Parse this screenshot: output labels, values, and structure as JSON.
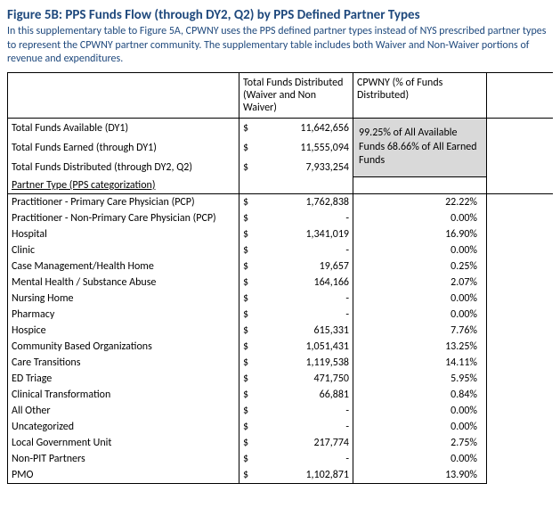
{
  "title": "Figure 5B: PPS Funds Flow (through DY2, Q2) by PPS Defined Partner Types",
  "description": "In this supplementary table to Figure 5A, CPWNY uses the PPS defined partner types instead of NYS prescribed partner types to represent the CPWNY partner community. The supplementary table includes both Waiver and Non-Waiver portions of revenue and expenditures.",
  "headers": {
    "funds": "Total Funds Distributed (Waiver and Non Waiver)",
    "pct": "CPWNY (% of Funds Distributed)"
  },
  "summary": {
    "rows": [
      {
        "label": "Total Funds Available (DY1)",
        "value": "11,642,656"
      },
      {
        "label": "Total Funds Earned (through DY1)",
        "value": "11,555,094"
      },
      {
        "label": "Total Funds Distributed (through DY2, Q2)",
        "value": "7,933,254"
      }
    ],
    "note": "99.25% of All Available Funds 68.66% of All Earned Funds"
  },
  "section_label": "Partner Type (PPS categorization)",
  "partners": [
    {
      "label": "Practitioner - Primary Care Physician (PCP)",
      "value": "1,762,838",
      "pct": "22.22%"
    },
    {
      "label": "Practitioner - Non-Primary Care Physician (PCP)",
      "value": "-",
      "pct": "0.00%"
    },
    {
      "label": "Hospital",
      "value": "1,341,019",
      "pct": "16.90%"
    },
    {
      "label": "Clinic",
      "value": "-",
      "pct": "0.00%"
    },
    {
      "label": "Case Management/Health Home",
      "value": "19,657",
      "pct": "0.25%"
    },
    {
      "label": "Mental Health / Substance Abuse",
      "value": "164,166",
      "pct": "2.07%"
    },
    {
      "label": "Nursing Home",
      "value": "-",
      "pct": "0.00%"
    },
    {
      "label": "Pharmacy",
      "value": "-",
      "pct": "0.00%"
    },
    {
      "label": "Hospice",
      "value": "615,331",
      "pct": "7.76%"
    },
    {
      "label": "Community Based Organizations",
      "value": "1,051,431",
      "pct": "13.25%"
    },
    {
      "label": "Care Transitions",
      "value": "1,119,538",
      "pct": "14.11%"
    },
    {
      "label": "ED Triage",
      "value": "471,750",
      "pct": "5.95%"
    },
    {
      "label": "Clinical Transformation",
      "value": "66,881",
      "pct": "0.84%"
    },
    {
      "label": "All Other",
      "value": "-",
      "pct": "0.00%"
    },
    {
      "label": "Uncategorized",
      "value": "-",
      "pct": "0.00%"
    },
    {
      "label": "Local Government Unit",
      "value": "217,774",
      "pct": "2.75%"
    },
    {
      "label": "Non-PIT Partners",
      "value": "-",
      "pct": "0.00%"
    },
    {
      "label": "PMO",
      "value": "1,102,871",
      "pct": "13.90%"
    }
  ]
}
